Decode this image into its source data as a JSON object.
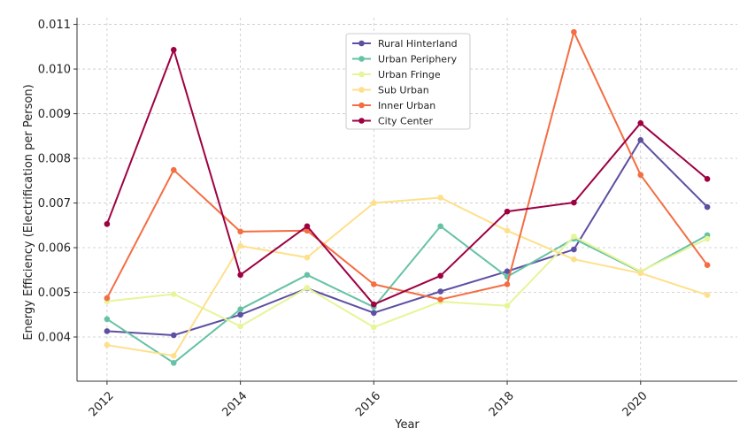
{
  "chart_data": {
    "type": "line",
    "title": "",
    "xlabel": "Year",
    "ylabel": "Energy Efficiency (Electrification per Person)",
    "x": [
      2012,
      2013,
      2014,
      2015,
      2016,
      2017,
      2018,
      2019,
      2020,
      2021
    ],
    "xticks": [
      "2012",
      "2014",
      "2016",
      "2018",
      "2020"
    ],
    "yticks": [
      "0.004",
      "0.005",
      "0.006",
      "0.007",
      "0.008",
      "0.009",
      "0.010",
      "0.011"
    ],
    "xlim": [
      2011.55,
      2021.45
    ],
    "ylim": [
      0.00301,
      0.01115
    ],
    "grid": true,
    "legend_position": "top-center",
    "series": [
      {
        "name": "Rural Hinterland",
        "color": "#5e4fa2",
        "values": [
          0.00413,
          0.00404,
          0.0045,
          0.00509,
          0.00454,
          0.00502,
          0.00547,
          0.00596,
          0.00841,
          0.00691
        ]
      },
      {
        "name": "Urban Periphery",
        "color": "#66c2a5",
        "values": [
          0.0044,
          0.00342,
          0.00462,
          0.00539,
          0.00467,
          0.00648,
          0.00535,
          0.0062,
          0.00546,
          0.00628
        ]
      },
      {
        "name": "Urban Fringe",
        "color": "#e6f598",
        "values": [
          0.0048,
          0.00496,
          0.00424,
          0.0051,
          0.00422,
          0.00479,
          0.0047,
          0.00625,
          0.00547,
          0.0062
        ]
      },
      {
        "name": "Sub Urban",
        "color": "#fee08b",
        "values": [
          0.00382,
          0.00358,
          0.00604,
          0.00578,
          0.007,
          0.00712,
          0.00638,
          0.00574,
          0.00543,
          0.00494
        ]
      },
      {
        "name": "Inner Urban",
        "color": "#f46d43",
        "values": [
          0.00487,
          0.00774,
          0.00636,
          0.00638,
          0.00518,
          0.00484,
          0.00518,
          0.01083,
          0.00763,
          0.00561
        ]
      },
      {
        "name": "City Center",
        "color": "#9e0142",
        "values": [
          0.00653,
          0.01043,
          0.00539,
          0.00648,
          0.00473,
          0.00537,
          0.00681,
          0.00701,
          0.00879,
          0.00754
        ]
      }
    ]
  }
}
